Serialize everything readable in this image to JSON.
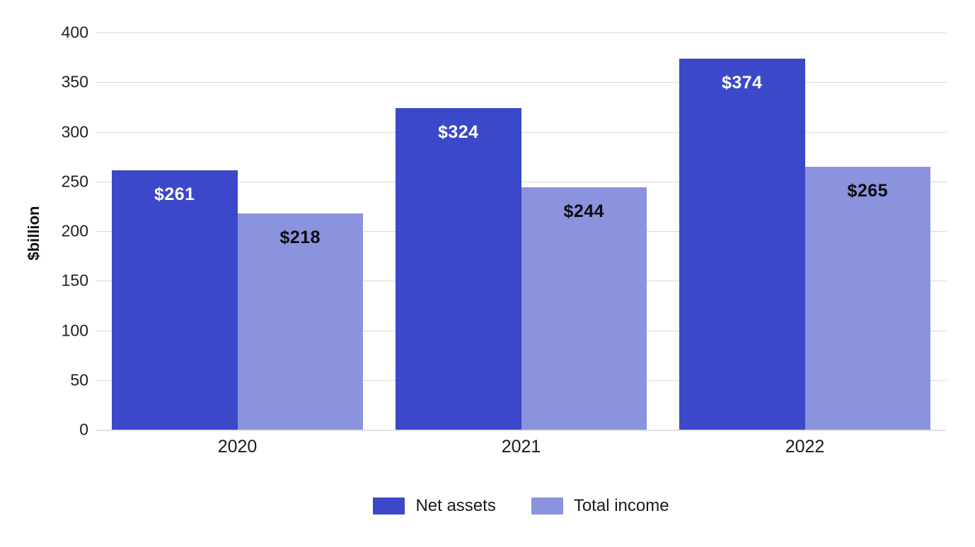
{
  "chart_data": {
    "type": "bar",
    "title": "",
    "xlabel": "",
    "ylabel": "$billion",
    "categories": [
      "2020",
      "2021",
      "2022"
    ],
    "series": [
      {
        "name": "Net assets",
        "color": "#3b48c9",
        "label_color": "#ffffff",
        "values": [
          261,
          324,
          374
        ],
        "labels": [
          "$261",
          "$324",
          "$374"
        ]
      },
      {
        "name": "Total income",
        "color": "#8b92de",
        "label_color": "#0d0d0d",
        "values": [
          218,
          244,
          265
        ],
        "labels": [
          "$218",
          "$244",
          "$265"
        ]
      }
    ],
    "ylim": [
      0,
      400
    ],
    "yticks": [
      0,
      50,
      100,
      150,
      200,
      250,
      300,
      350,
      400
    ],
    "grid": true,
    "legend_position": "bottom",
    "gridline_color": "#d8d8d8",
    "baseline_color": "#e2e2e2",
    "tick_text_color": "#212121"
  }
}
